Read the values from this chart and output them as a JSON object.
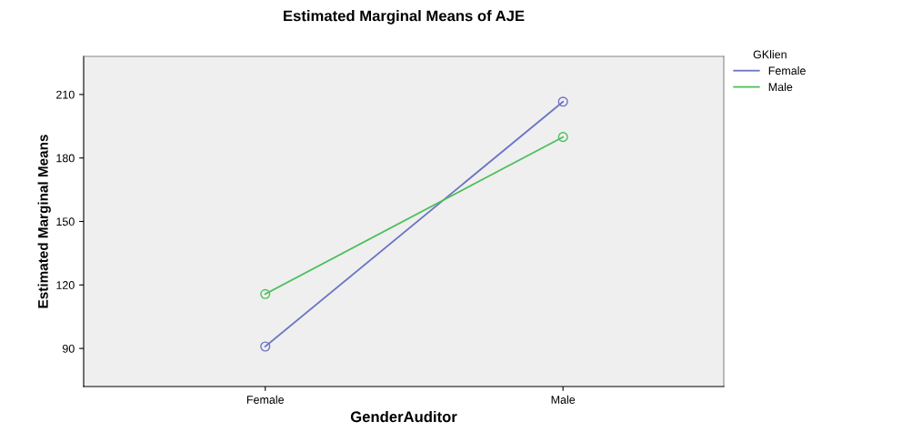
{
  "chart_data": {
    "type": "line",
    "title": "Estimated Marginal Means of AJE",
    "xlabel": "GenderAuditor",
    "ylabel": "Estimated Marginal Means",
    "legend_title": "GKlien",
    "categories": [
      "Female",
      "Male"
    ],
    "series": [
      {
        "name": "Female",
        "color": "#6c74c4",
        "values": [
          90.9,
          206.6
        ]
      },
      {
        "name": "Male",
        "color": "#4cbf5c",
        "values": [
          115.7,
          189.9
        ]
      }
    ],
    "ylim": [
      72,
      228
    ],
    "yticks": [
      90,
      120,
      150,
      180,
      210
    ],
    "grid": false,
    "legend": "top right",
    "marker": "circle",
    "line_style": "solid"
  }
}
